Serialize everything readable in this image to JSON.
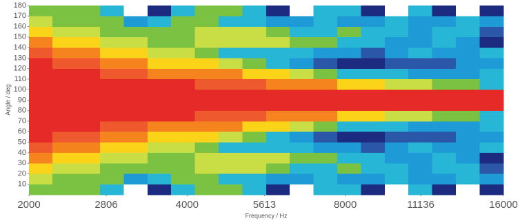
{
  "chart_data": {
    "type": "heatmap",
    "xlabel": "Frequency / Hz",
    "ylabel": "Angle / deg",
    "xscale": "log",
    "xlim": [
      2000,
      16000
    ],
    "ylim": [
      0,
      180
    ],
    "xticks": [
      2000,
      2806,
      4000,
      5613,
      8000,
      11136,
      16000
    ],
    "yticks": [
      10,
      20,
      30,
      40,
      50,
      60,
      70,
      80,
      90,
      100,
      110,
      120,
      130,
      140,
      150,
      160,
      170,
      180
    ],
    "x_edges": [
      2000,
      2219,
      2462,
      2732,
      3031,
      3364,
      3732,
      4141,
      4595,
      5099,
      5657,
      6277,
      6965,
      7728,
      8575,
      9514,
      10557,
      11714,
      12998,
      14422,
      16000
    ],
    "y_edges": [
      0,
      10,
      20,
      30,
      40,
      50,
      60,
      70,
      80,
      90,
      100,
      110,
      120,
      130,
      140,
      150,
      160,
      170,
      180
    ],
    "colors": [
      "#ffffff",
      "#1c2b7f",
      "#2a57a8",
      "#1e9ad6",
      "#27b6d6",
      "#7cc242",
      "#c9de45",
      "#fbd41a",
      "#f5841f",
      "#ee5a2e",
      "#e52a27"
    ],
    "z": [
      [
        5,
        5,
        5,
        4,
        0,
        1,
        4,
        5,
        5,
        4,
        1,
        0,
        4,
        4,
        1,
        0,
        4,
        1,
        0,
        1
      ],
      [
        6,
        5,
        5,
        5,
        3,
        4,
        5,
        5,
        4,
        4,
        3,
        3,
        4,
        3,
        3,
        4,
        3,
        3,
        4,
        3
      ],
      [
        7,
        6,
        6,
        5,
        5,
        5,
        5,
        6,
        6,
        6,
        5,
        4,
        4,
        5,
        4,
        4,
        3,
        4,
        4,
        2
      ],
      [
        8,
        7,
        7,
        6,
        6,
        5,
        5,
        6,
        6,
        6,
        6,
        5,
        5,
        4,
        4,
        3,
        3,
        4,
        3,
        1
      ],
      [
        9,
        8,
        8,
        7,
        7,
        6,
        6,
        5,
        4,
        4,
        4,
        4,
        3,
        3,
        2,
        3,
        4,
        3,
        3,
        4
      ],
      [
        10,
        9,
        9,
        8,
        8,
        7,
        7,
        7,
        6,
        5,
        4,
        3,
        2,
        1,
        1,
        2,
        2,
        2,
        3,
        3
      ],
      [
        10,
        10,
        10,
        9,
        9,
        8,
        8,
        8,
        8,
        7,
        7,
        6,
        5,
        4,
        4,
        4,
        3,
        3,
        3,
        4
      ],
      [
        10,
        10,
        10,
        10,
        10,
        10,
        10,
        9,
        9,
        9,
        8,
        8,
        8,
        7,
        7,
        6,
        6,
        5,
        5,
        4
      ],
      [
        10,
        10,
        10,
        10,
        10,
        10,
        10,
        10,
        10,
        10,
        10,
        10,
        10,
        10,
        10,
        10,
        10,
        10,
        10,
        10
      ],
      [
        10,
        10,
        10,
        10,
        10,
        10,
        10,
        10,
        10,
        10,
        10,
        10,
        10,
        10,
        10,
        10,
        10,
        10,
        10,
        10
      ],
      [
        10,
        10,
        10,
        10,
        10,
        10,
        10,
        9,
        9,
        9,
        8,
        8,
        8,
        7,
        7,
        6,
        6,
        5,
        5,
        4
      ],
      [
        10,
        10,
        10,
        9,
        9,
        8,
        8,
        8,
        8,
        7,
        7,
        6,
        5,
        4,
        4,
        4,
        3,
        3,
        3,
        4
      ],
      [
        10,
        9,
        9,
        8,
        8,
        7,
        7,
        7,
        6,
        5,
        4,
        3,
        2,
        1,
        1,
        2,
        2,
        2,
        3,
        3
      ],
      [
        9,
        8,
        8,
        7,
        7,
        6,
        6,
        5,
        4,
        4,
        4,
        4,
        3,
        3,
        2,
        3,
        4,
        3,
        3,
        4
      ],
      [
        8,
        7,
        7,
        6,
        6,
        5,
        5,
        6,
        6,
        6,
        6,
        5,
        5,
        4,
        4,
        3,
        3,
        4,
        3,
        1
      ],
      [
        7,
        6,
        6,
        5,
        5,
        5,
        5,
        6,
        6,
        6,
        5,
        4,
        4,
        5,
        4,
        4,
        3,
        4,
        4,
        2
      ],
      [
        6,
        5,
        5,
        5,
        3,
        4,
        5,
        5,
        4,
        4,
        3,
        3,
        4,
        3,
        3,
        4,
        3,
        3,
        4,
        3
      ],
      [
        5,
        5,
        5,
        4,
        0,
        1,
        4,
        5,
        5,
        4,
        1,
        0,
        4,
        4,
        1,
        0,
        4,
        1,
        0,
        1
      ]
    ]
  }
}
